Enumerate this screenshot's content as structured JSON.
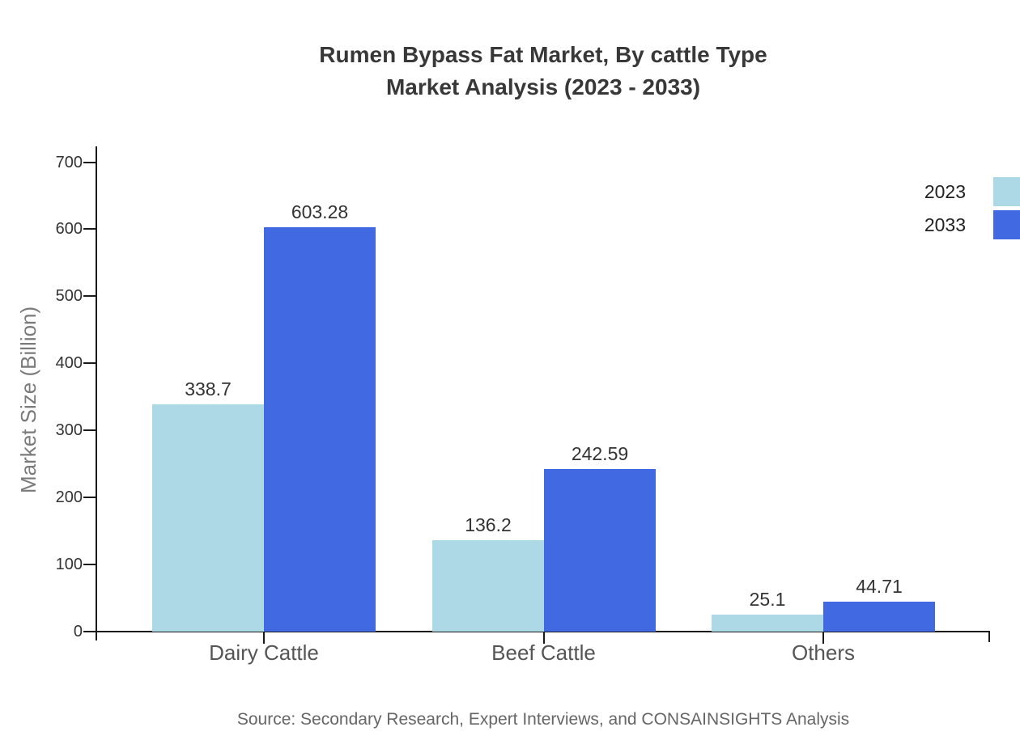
{
  "page": {
    "background": "#ffffff"
  },
  "title": {
    "line1": "Rumen Bypass Fat Market, By cattle Type",
    "line2": "Market Analysis (2023 - 2033)"
  },
  "chart_data": {
    "type": "bar",
    "title": "Rumen Bypass Fat Market, By cattle Type Market Analysis (2023 - 2033)",
    "categories": [
      "Dairy Cattle",
      "Beef Cattle",
      "Others"
    ],
    "series": [
      {
        "name": "2023",
        "color": "#ADD8E6",
        "values": [
          338.7,
          136.2,
          25.1
        ],
        "value_labels": [
          "338.7",
          "136.2",
          "25.1"
        ]
      },
      {
        "name": "2033",
        "color": "#4169E1",
        "values": [
          603.28,
          242.59,
          44.71
        ],
        "value_labels": [
          "603.28",
          "242.59",
          "44.71"
        ]
      }
    ],
    "xlabel": "",
    "ylabel": "Market Size (Billion)",
    "ylim": [
      0,
      700
    ],
    "y_ticks": [
      0,
      100,
      200,
      300,
      400,
      500,
      600,
      700
    ],
    "grid": false,
    "legend_position": "top-right",
    "bar_value_labels_shown": true
  },
  "legend": {
    "items": [
      {
        "label": "2023",
        "color": "#ADD8E6"
      },
      {
        "label": "2033",
        "color": "#4169E1"
      }
    ]
  },
  "footer": {
    "source": "Source: Secondary Research, Expert Interviews, and CONSAINSIGHTS Analysis"
  },
  "colors": {
    "bar_2023": "#ADD8E6",
    "bar_2033": "#4169E1",
    "title_text": "#383838",
    "axis_line": "#1a1a1a",
    "tick_label": "#333333",
    "category_label": "#555555",
    "axis_title_text": "#7a7a7a",
    "value_label": "#333333",
    "source_text": "#666666"
  }
}
